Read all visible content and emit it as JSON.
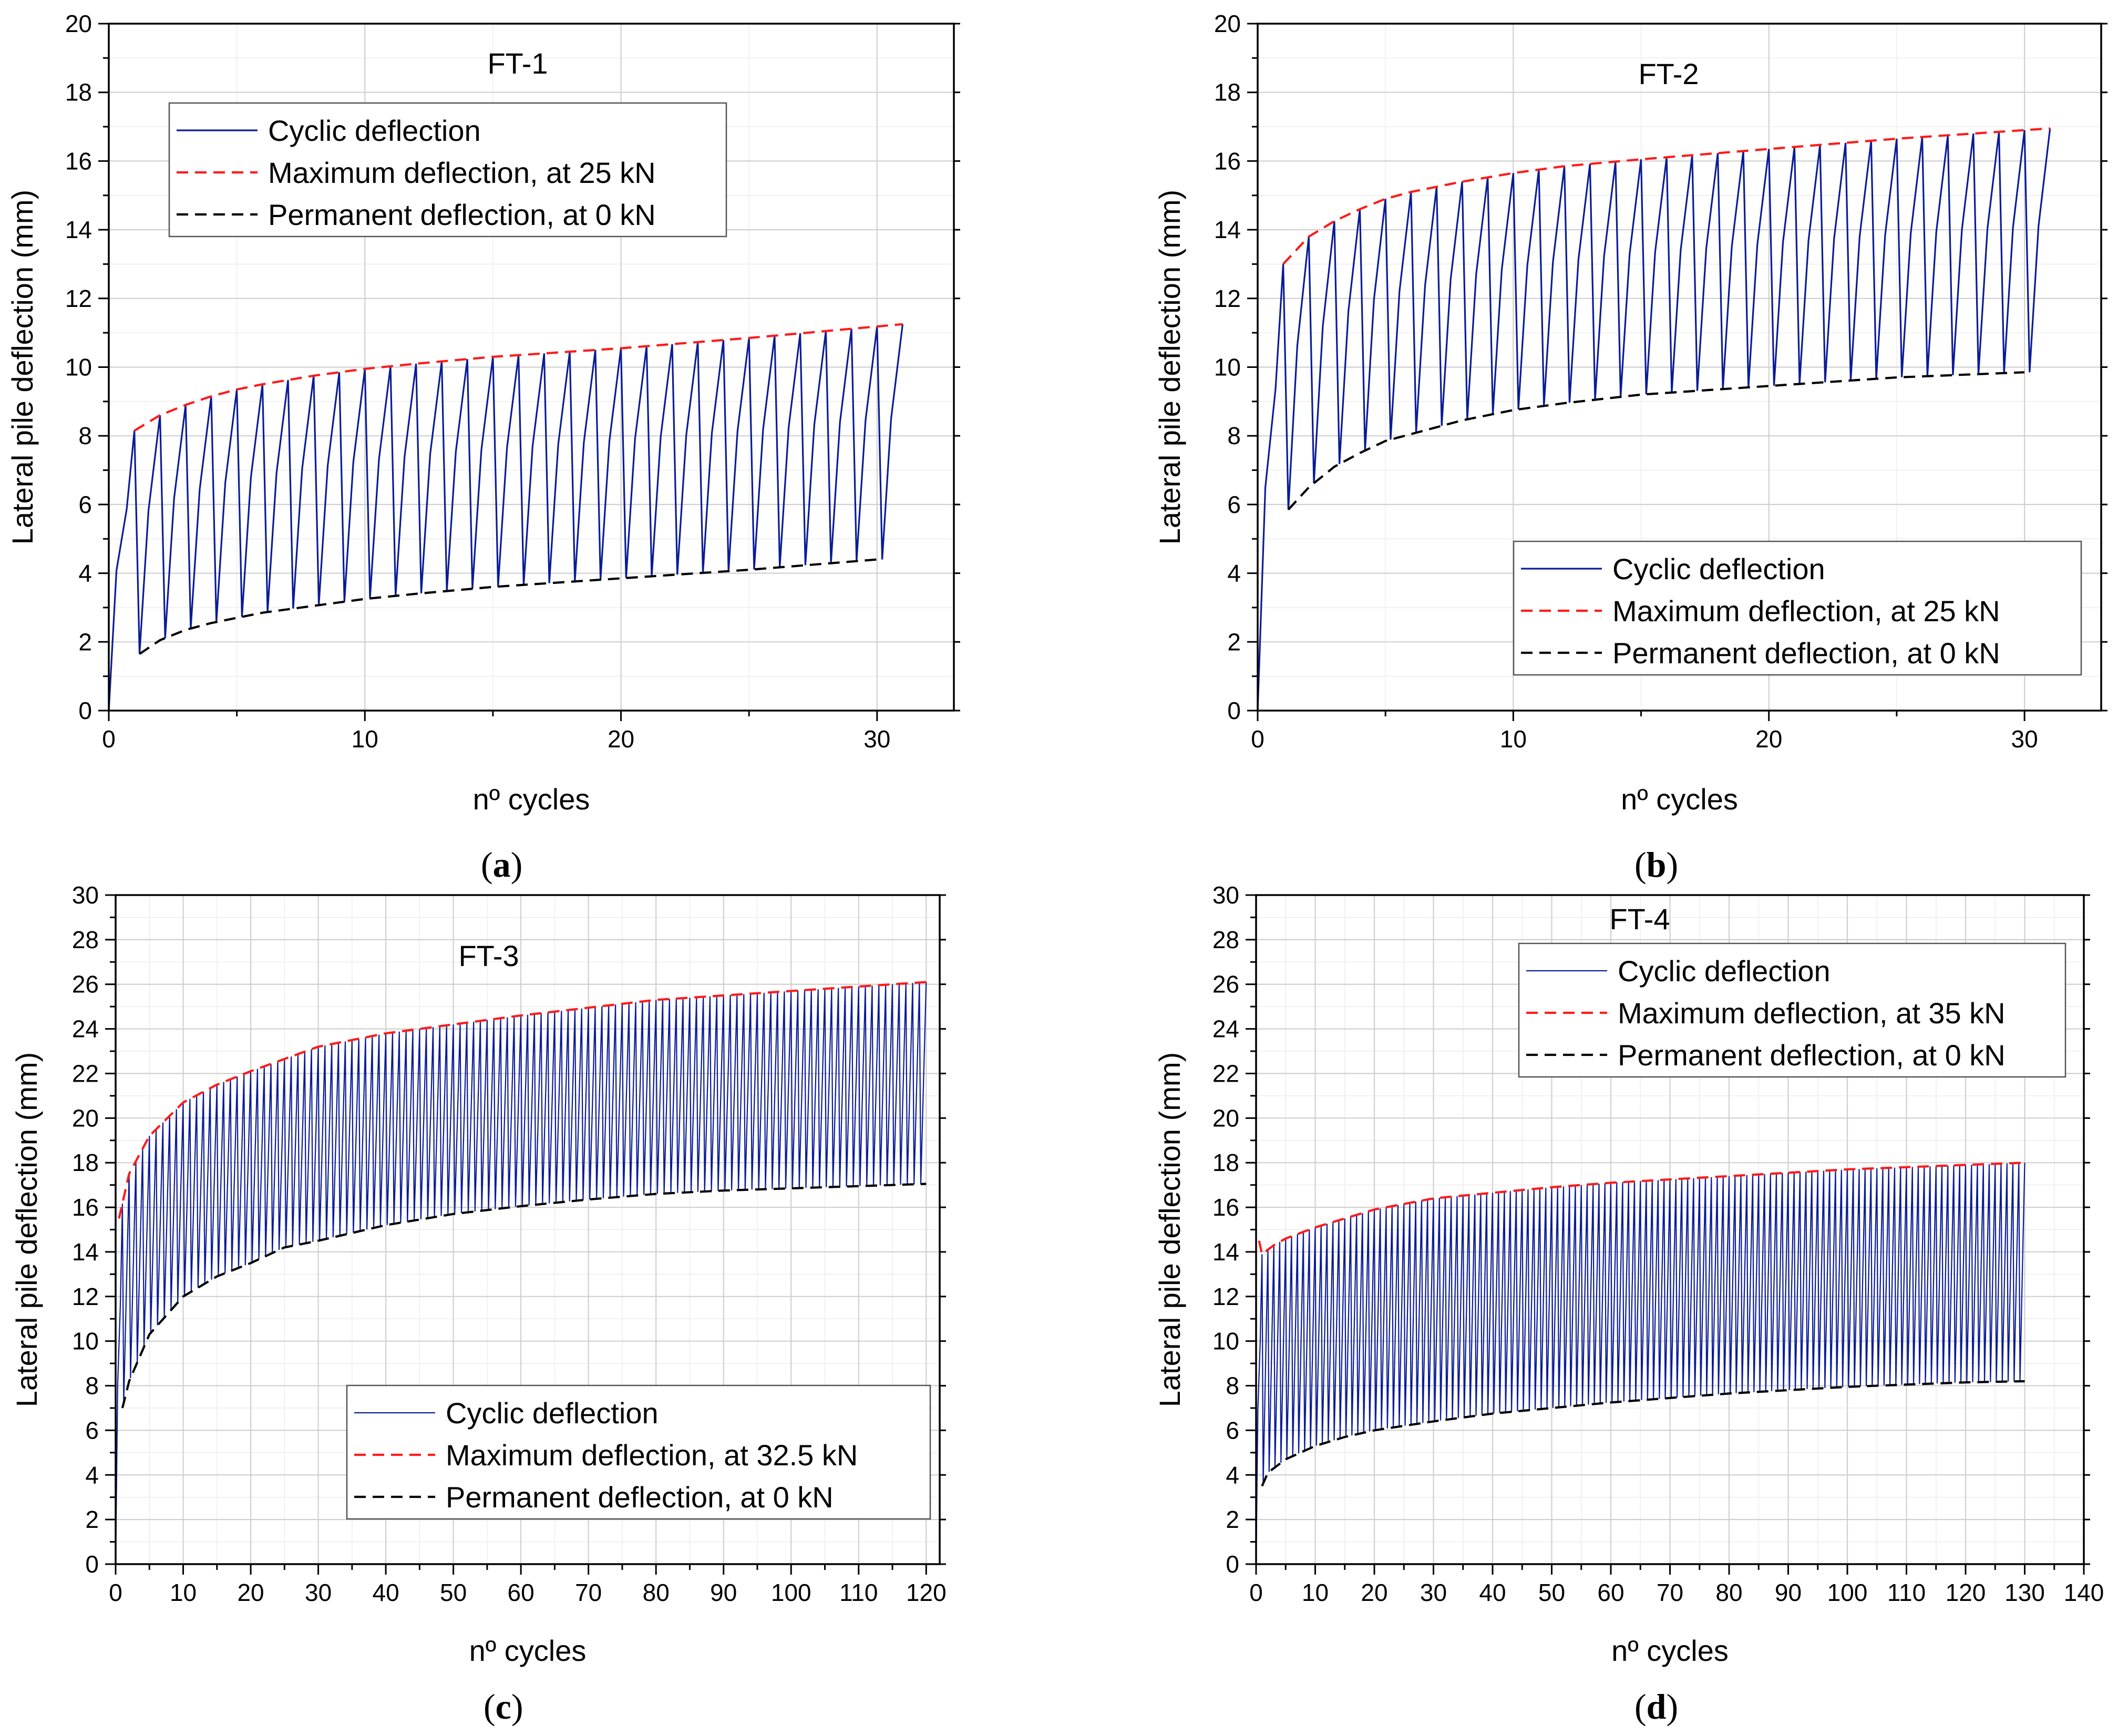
{
  "colors": {
    "cyclic": "#0a1c96",
    "cyclic_light": "#3a4cc6",
    "maximum": "#ff1a1a",
    "permanent": "#000000"
  },
  "chart_data": [
    {
      "id": "a",
      "type": "line",
      "title": "FT-1",
      "panel_label": "(a)",
      "panel_letter": "a",
      "xlabel": "nº cycles",
      "ylabel": "Lateral pile deflection (mm)",
      "xlim": [
        0,
        33
      ],
      "ylim": [
        0,
        20
      ],
      "xticks": [
        0,
        10,
        20,
        30
      ],
      "yticks": [
        0,
        2,
        4,
        6,
        8,
        10,
        12,
        14,
        16,
        18,
        20
      ],
      "cycles": 30,
      "legend": [
        "Cyclic deflection",
        "Maximum deflection, at 25 kN",
        "Permanent deflection, at 0 kN"
      ],
      "legend_position": "top-left",
      "series": [
        {
          "name": "Maximum deflection, at 25 kN",
          "x": [
            1,
            2,
            3,
            4,
            5,
            6,
            8,
            10,
            12,
            15,
            20,
            25,
            31
          ],
          "y": [
            8.15,
            8.6,
            8.9,
            9.15,
            9.35,
            9.5,
            9.75,
            9.95,
            10.1,
            10.3,
            10.55,
            10.85,
            11.25
          ]
        },
        {
          "name": "Permanent deflection, at 0 kN",
          "x": [
            1.2,
            2,
            3,
            4,
            5,
            6,
            8,
            10,
            12,
            15,
            20,
            25,
            30
          ],
          "y": [
            1.65,
            2.05,
            2.35,
            2.55,
            2.7,
            2.85,
            3.05,
            3.25,
            3.4,
            3.6,
            3.85,
            4.1,
            4.4
          ]
        }
      ]
    },
    {
      "id": "b",
      "type": "line",
      "title": "FT-2",
      "panel_label": "(b)",
      "panel_letter": "b",
      "xlabel": "nº cycles",
      "ylabel": "Lateral pile deflection (mm)",
      "xlim": [
        0,
        33
      ],
      "ylim": [
        0,
        20
      ],
      "xticks": [
        0,
        10,
        20,
        30
      ],
      "yticks": [
        0,
        2,
        4,
        6,
        8,
        10,
        12,
        14,
        16,
        18,
        20
      ],
      "cycles": 30,
      "legend": [
        "Cyclic deflection",
        "Maximum deflection, at 25 kN",
        "Permanent deflection, at 0 kN"
      ],
      "legend_position": "bottom-right",
      "series": [
        {
          "name": "Maximum deflection, at 25 kN",
          "x": [
            1,
            2,
            3,
            4,
            5,
            6,
            8,
            10,
            12,
            15,
            20,
            25,
            31
          ],
          "y": [
            13.0,
            13.8,
            14.25,
            14.6,
            14.9,
            15.1,
            15.4,
            15.65,
            15.85,
            16.05,
            16.35,
            16.65,
            16.95
          ]
        },
        {
          "name": "Permanent deflection, at 0 kN",
          "x": [
            1.2,
            2,
            3,
            4,
            5,
            6,
            8,
            10,
            12,
            15,
            20,
            25,
            30
          ],
          "y": [
            5.85,
            6.5,
            7.1,
            7.5,
            7.85,
            8.05,
            8.45,
            8.75,
            8.95,
            9.2,
            9.45,
            9.7,
            9.85
          ]
        }
      ]
    },
    {
      "id": "c",
      "type": "line",
      "title": "FT-3",
      "panel_label": "(c)",
      "panel_letter": "c",
      "xlabel": "nº cycles",
      "ylabel": "Lateral pile deflection (mm)",
      "xlim": [
        0,
        122
      ],
      "ylim": [
        0,
        30
      ],
      "xticks": [
        0,
        10,
        20,
        30,
        40,
        50,
        60,
        70,
        80,
        90,
        100,
        110,
        120
      ],
      "yticks": [
        0,
        2,
        4,
        6,
        8,
        10,
        12,
        14,
        16,
        18,
        20,
        22,
        24,
        26,
        28,
        30
      ],
      "cycles": 119,
      "legend": [
        "Cyclic deflection",
        "Maximum deflection, at 32.5 kN",
        "Permanent deflection, at 0 kN"
      ],
      "legend_position": "bottom-right",
      "series": [
        {
          "name": "Maximum deflection, at 32.5 kN",
          "x": [
            0.5,
            2,
            5,
            10,
            15,
            20,
            30,
            40,
            50,
            60,
            70,
            80,
            90,
            100,
            110,
            120
          ],
          "y": [
            15.5,
            17.5,
            19.2,
            20.7,
            21.5,
            22.1,
            23.2,
            23.8,
            24.2,
            24.6,
            24.95,
            25.3,
            25.5,
            25.7,
            25.9,
            26.1
          ]
        },
        {
          "name": "Permanent deflection, at 0 kN",
          "x": [
            1,
            2,
            5,
            10,
            15,
            20,
            25,
            30,
            40,
            50,
            60,
            70,
            80,
            90,
            100,
            110,
            120
          ],
          "y": [
            7.0,
            8.2,
            10.3,
            12.0,
            12.9,
            13.5,
            14.2,
            14.5,
            15.2,
            15.7,
            16.05,
            16.35,
            16.6,
            16.75,
            16.85,
            16.95,
            17.05
          ]
        }
      ]
    },
    {
      "id": "d",
      "type": "line",
      "title": "FT-4",
      "panel_label": "(d)",
      "panel_letter": "d",
      "xlabel": "nº cycles",
      "ylabel": "Lateral pile deflection (mm)",
      "xlim": [
        0,
        140
      ],
      "ylim": [
        0,
        30
      ],
      "xticks": [
        0,
        10,
        20,
        30,
        40,
        50,
        60,
        70,
        80,
        90,
        100,
        110,
        120,
        130,
        140
      ],
      "yticks": [
        0,
        2,
        4,
        6,
        8,
        10,
        12,
        14,
        16,
        18,
        20,
        22,
        24,
        26,
        28,
        30
      ],
      "cycles": 129,
      "legend": [
        "Cyclic deflection",
        "Maximum deflection, at 35 kN",
        "Permanent deflection, at 0 kN"
      ],
      "legend_position": "top-right",
      "series": [
        {
          "name": "Maximum deflection, at 35 kN",
          "x": [
            0.5,
            1,
            2,
            3,
            5,
            10,
            20,
            30,
            40,
            50,
            60,
            70,
            80,
            90,
            100,
            110,
            120,
            130
          ],
          "y": [
            14.5,
            13.9,
            14.1,
            14.3,
            14.6,
            15.1,
            15.9,
            16.4,
            16.65,
            16.9,
            17.1,
            17.25,
            17.4,
            17.55,
            17.7,
            17.8,
            17.9,
            18.0
          ]
        },
        {
          "name": "Permanent deflection, at 0 kN",
          "x": [
            1,
            2,
            5,
            10,
            15,
            20,
            30,
            40,
            50,
            60,
            70,
            80,
            90,
            100,
            110,
            120,
            130
          ],
          "y": [
            3.5,
            4.1,
            4.7,
            5.3,
            5.7,
            6.0,
            6.4,
            6.75,
            7.0,
            7.25,
            7.45,
            7.65,
            7.8,
            7.95,
            8.05,
            8.15,
            8.2
          ]
        }
      ]
    }
  ]
}
